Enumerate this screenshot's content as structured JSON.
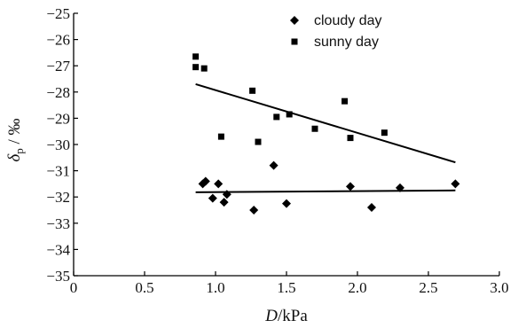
{
  "chart_data": {
    "type": "scatter",
    "title": "",
    "xlabel": {
      "italic": "D",
      "rest": "/kPa"
    },
    "ylabel": {
      "italic": "δ",
      "sub": "p",
      "rest": " / ‰"
    },
    "xlim": [
      0,
      3.0
    ],
    "ylim": [
      -35,
      -25
    ],
    "xticks": [
      "0",
      "0.5",
      "1.0",
      "1.5",
      "2.0",
      "2.5",
      "3.0"
    ],
    "xtick_values": [
      0,
      0.5,
      1.0,
      1.5,
      2.0,
      2.5,
      3.0
    ],
    "yticks": [
      "−25",
      "−26",
      "−27",
      "−28",
      "−29",
      "−30",
      "−31",
      "−32",
      "−33",
      "−34",
      "−35"
    ],
    "ytick_values": [
      -25,
      -26,
      -27,
      -28,
      -29,
      -30,
      -31,
      -32,
      -33,
      -34,
      -35
    ],
    "grid": false,
    "legend_position": "top-right",
    "series": [
      {
        "name": "cloudy day",
        "marker": "diamond",
        "color": "#000000",
        "points": [
          [
            0.91,
            -31.5
          ],
          [
            0.93,
            -31.4
          ],
          [
            0.98,
            -32.05
          ],
          [
            1.02,
            -31.5
          ],
          [
            1.06,
            -32.2
          ],
          [
            1.08,
            -31.9
          ],
          [
            1.27,
            -32.5
          ],
          [
            1.41,
            -30.8
          ],
          [
            1.5,
            -32.25
          ],
          [
            1.95,
            -31.6
          ],
          [
            2.1,
            -32.4
          ],
          [
            2.3,
            -31.65
          ],
          [
            2.69,
            -31.5
          ]
        ],
        "fit": [
          [
            0.86,
            -31.82
          ],
          [
            2.69,
            -31.75
          ]
        ]
      },
      {
        "name": "sunny day",
        "marker": "square",
        "color": "#000000",
        "points": [
          [
            0.86,
            -26.65
          ],
          [
            0.86,
            -27.05
          ],
          [
            0.92,
            -27.1
          ],
          [
            1.04,
            -29.7
          ],
          [
            1.26,
            -27.95
          ],
          [
            1.3,
            -29.9
          ],
          [
            1.43,
            -28.95
          ],
          [
            1.52,
            -28.85
          ],
          [
            1.7,
            -29.4
          ],
          [
            1.91,
            -28.35
          ],
          [
            1.95,
            -29.75
          ],
          [
            2.19,
            -29.55
          ]
        ],
        "fit": [
          [
            0.86,
            -27.7
          ],
          [
            2.69,
            -30.68
          ]
        ]
      }
    ]
  }
}
